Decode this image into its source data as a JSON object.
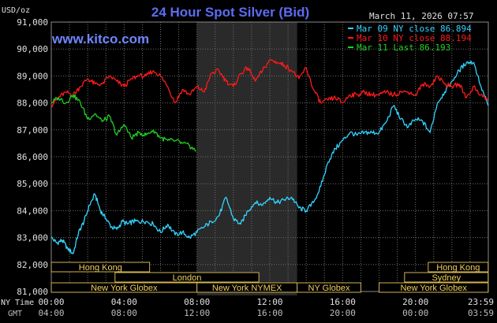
{
  "chart_data": {
    "type": "line",
    "title": "24 Hour Spot Silver (Bid)",
    "date": "March 11, 2026 07:57",
    "watermark": "www.kitco.com",
    "ylabel": "USD/oz",
    "ylim": [
      81.0,
      91.0
    ],
    "yticks": [
      "91,000",
      "90,000",
      "89,000",
      "88,000",
      "87,000",
      "86,000",
      "85,000",
      "84,000",
      "83,000",
      "82,000",
      "81,000"
    ],
    "xlim": [
      0,
      24
    ],
    "x_row1_label": "NY Time",
    "x_row2_label": "GMT",
    "xticks_ny": [
      "00:00",
      "04:00",
      "08:00",
      "12:00",
      "16:00",
      "20:00",
      "23:59"
    ],
    "xticks_gmt": [
      "04:00",
      "08:00",
      "12:00",
      "16:00",
      "20:00",
      "00:00",
      "03:59"
    ],
    "colors": {
      "background": "#000000",
      "grid": "#6e6e6e",
      "title": "#5b6cf2",
      "watermark": "#6f86ff",
      "text": "#e0e0e0",
      "shade": "#2a2a2a",
      "band_fill": "#000000",
      "band_border": "#d2b34e",
      "band_text": "#f0d060"
    },
    "series": [
      {
        "name": "Mar 09 NY close 86.894",
        "color": "#33d4ff",
        "x": [
          0,
          0.3,
          0.6,
          0.9,
          1.2,
          1.5,
          1.8,
          2.1,
          2.4,
          2.7,
          3.0,
          3.3,
          3.6,
          3.9,
          4.2,
          4.5,
          4.8,
          5.2,
          5.6,
          6.0,
          6.4,
          6.8,
          7.2,
          7.6,
          8.0,
          8.4,
          8.8,
          9.2,
          9.6,
          10.0,
          10.4,
          10.8,
          11.2,
          11.6,
          12.0,
          12.4,
          12.8,
          13.2,
          13.6,
          14.0,
          14.4,
          14.8,
          15.2,
          15.6,
          16.0,
          16.4,
          16.8,
          17.2,
          17.6,
          18.0,
          18.4,
          18.8,
          19.2,
          19.6,
          20.0,
          20.4,
          20.8,
          21.2,
          21.6,
          22.0,
          22.4,
          22.8,
          23.2,
          23.6,
          23.99
        ],
        "values": [
          83.0,
          82.8,
          82.9,
          82.6,
          82.4,
          83.2,
          83.6,
          84.2,
          84.6,
          84.0,
          83.7,
          83.4,
          83.3,
          83.6,
          83.5,
          83.6,
          83.6,
          83.6,
          83.5,
          83.2,
          83.5,
          83.1,
          83.2,
          83.0,
          83.2,
          83.4,
          83.6,
          83.8,
          84.5,
          83.7,
          83.5,
          84.0,
          84.3,
          84.2,
          84.5,
          84.3,
          84.4,
          84.5,
          84.1,
          84.0,
          84.3,
          84.9,
          85.8,
          86.3,
          86.6,
          86.9,
          86.8,
          86.9,
          86.9,
          86.9,
          87.3,
          87.9,
          87.4,
          87.1,
          87.4,
          87.3,
          86.9,
          88.0,
          88.4,
          88.8,
          89.2,
          89.5,
          89.5,
          88.6,
          87.9
        ]
      },
      {
        "name": "Mar 10 NY close 88.194",
        "color": "#ff1a1a",
        "x": [
          0,
          0.4,
          0.8,
          1.2,
          1.6,
          2.0,
          2.4,
          2.8,
          3.2,
          3.6,
          4.0,
          4.4,
          4.8,
          5.2,
          5.6,
          6.0,
          6.4,
          6.8,
          7.2,
          7.6,
          8.0,
          8.4,
          8.8,
          9.2,
          9.6,
          10.0,
          10.4,
          10.8,
          11.2,
          11.6,
          12.0,
          12.4,
          12.8,
          13.2,
          13.6,
          14.0,
          14.4,
          14.8,
          15.2,
          15.6,
          16.0,
          16.4,
          16.8,
          17.2,
          17.6,
          18.0,
          18.4,
          18.8,
          19.2,
          19.6,
          20.0,
          20.4,
          20.8,
          21.2,
          21.6,
          22.0,
          22.4,
          22.8,
          23.2,
          23.6,
          23.99
        ],
        "values": [
          87.9,
          88.2,
          88.4,
          88.3,
          88.6,
          88.9,
          88.7,
          88.7,
          89.0,
          88.8,
          88.6,
          88.9,
          89.0,
          89.0,
          89.2,
          89.0,
          88.6,
          88.0,
          88.5,
          88.3,
          88.6,
          88.4,
          89.1,
          89.2,
          88.8,
          88.6,
          89.1,
          89.3,
          88.8,
          89.2,
          89.6,
          89.5,
          89.4,
          89.2,
          88.9,
          89.3,
          88.5,
          88.0,
          88.1,
          88.2,
          88.0,
          88.3,
          88.3,
          88.4,
          88.3,
          88.3,
          88.4,
          88.3,
          88.4,
          88.4,
          88.3,
          88.7,
          88.6,
          89.0,
          88.7,
          88.6,
          88.7,
          88.2,
          88.6,
          88.3,
          88.1
        ]
      },
      {
        "name": "Mar 11 Last 86.193",
        "color": "#22d022",
        "x": [
          0,
          0.4,
          0.8,
          1.2,
          1.6,
          2.0,
          2.4,
          2.8,
          3.2,
          3.6,
          4.0,
          4.4,
          4.8,
          5.2,
          5.6,
          6.0,
          6.4,
          6.8,
          7.2,
          7.6,
          7.95
        ],
        "values": [
          88.0,
          88.2,
          88.0,
          88.3,
          88.0,
          87.4,
          87.6,
          87.3,
          87.5,
          86.8,
          87.2,
          86.7,
          86.9,
          86.8,
          87.0,
          86.7,
          86.6,
          86.6,
          86.5,
          86.4,
          86.2
        ]
      }
    ],
    "shaded_range": [
      8.0,
      13.5
    ],
    "sessions": [
      {
        "label": "Hong Kong",
        "row": 0,
        "start": 0,
        "end": 5.4
      },
      {
        "label": "Hong Kong",
        "row": 0,
        "start": 20.7,
        "end": 23.99
      },
      {
        "label": "London",
        "row": 1,
        "start": 3.5,
        "end": 11.4
      },
      {
        "label": "Sydney",
        "row": 1,
        "start": 19.4,
        "end": 23.99
      },
      {
        "label": "New York Globex",
        "row": 2,
        "start": 0,
        "end": 8.0
      },
      {
        "label": "New York NYMEX",
        "row": 2,
        "start": 8.0,
        "end": 13.5
      },
      {
        "label": "NY Globex",
        "row": 2,
        "start": 13.5,
        "end": 17.0
      },
      {
        "label": "New York Globex",
        "row": 2,
        "start": 18.0,
        "end": 23.99
      }
    ]
  }
}
